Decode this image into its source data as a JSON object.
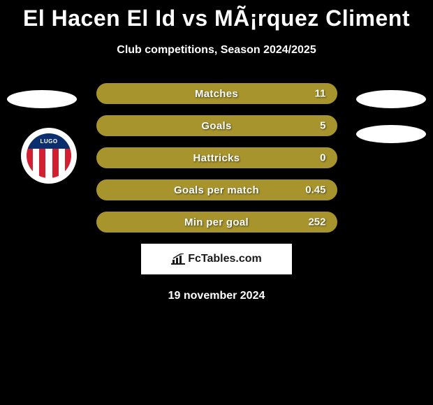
{
  "title": "El Hacen El Id vs MÃ¡rquez Climent",
  "subtitle": "Club competitions, Season 2024/2025",
  "date": "19 november 2024",
  "footer_brand": "FcTables.com",
  "badge_text": "LUGO",
  "colors": {
    "background": "#000000",
    "bar_fill": "#a8942d",
    "bar_border": "#a8942d",
    "text": "#ffffff",
    "ellipse": "#ffffff",
    "badge_top": "#0b2e6f",
    "stripe_red": "#d22030",
    "stripe_white": "#ffffff",
    "footer_bg": "#ffffff",
    "footer_text": "#1a1a1a"
  },
  "stats": [
    {
      "label": "Matches",
      "value": "11",
      "fill": 1.0
    },
    {
      "label": "Goals",
      "value": "5",
      "fill": 1.0
    },
    {
      "label": "Hattricks",
      "value": "0",
      "fill": 1.0
    },
    {
      "label": "Goals per match",
      "value": "0.45",
      "fill": 1.0
    },
    {
      "label": "Min per goal",
      "value": "252",
      "fill": 1.0
    }
  ]
}
